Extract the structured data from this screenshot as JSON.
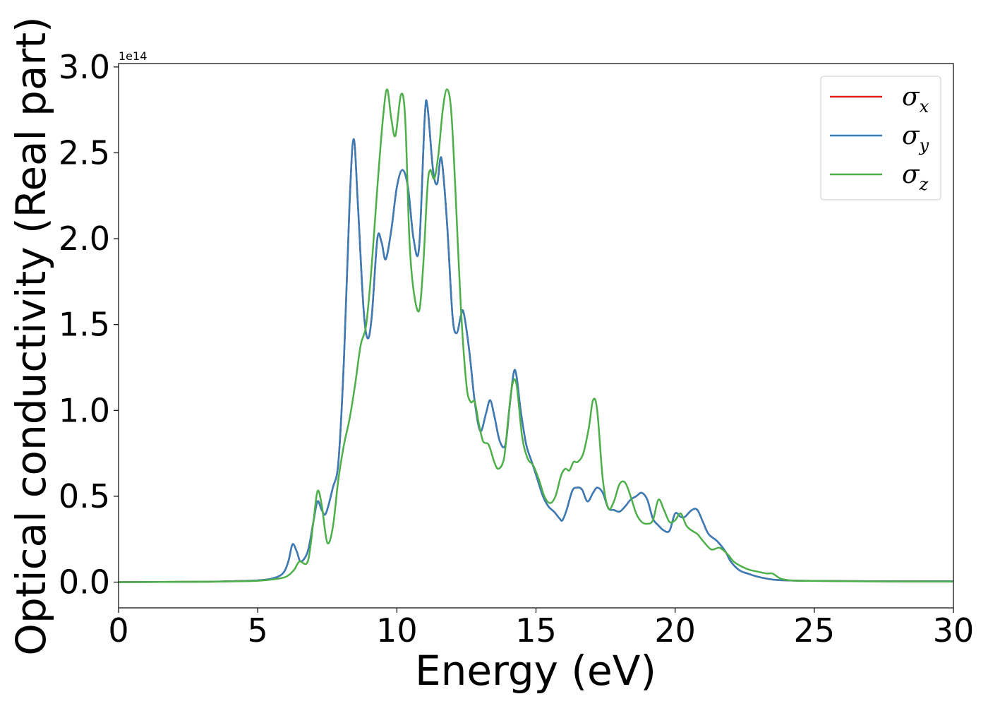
{
  "chart_data": {
    "type": "line",
    "xlabel": "Energy (eV)",
    "ylabel": "Optical conductivity (Real part)",
    "offset_text": "1e14",
    "xlim": [
      0,
      30
    ],
    "ylim": [
      -0.15,
      3.02
    ],
    "xticks": [
      0,
      5,
      10,
      15,
      20,
      25,
      30
    ],
    "xtick_labels": [
      "0",
      "5",
      "10",
      "15",
      "20",
      "25",
      "30"
    ],
    "yticks": [
      0.0,
      0.5,
      1.0,
      1.5,
      2.0,
      2.5,
      3.0
    ],
    "ytick_labels": [
      "0.0",
      "0.5",
      "1.0",
      "1.5",
      "2.0",
      "2.5",
      "3.0"
    ],
    "grid": false,
    "legend_position": "top-right",
    "series": [
      {
        "name": "σx",
        "symbol": "σ",
        "sub": "x",
        "color": "#e41a1c",
        "x": [
          0,
          3,
          4,
          5,
          5.5,
          5.9,
          6.1,
          6.25,
          6.4,
          6.55,
          6.8,
          7.0,
          7.15,
          7.3,
          7.45,
          7.7,
          7.9,
          8.1,
          8.3,
          8.45,
          8.6,
          8.8,
          8.95,
          9.1,
          9.3,
          9.45,
          9.6,
          9.8,
          10.0,
          10.2,
          10.4,
          10.6,
          10.8,
          11.0,
          11.1,
          11.3,
          11.45,
          11.6,
          11.8,
          12.0,
          12.15,
          12.3,
          12.4,
          12.6,
          12.8,
          13.0,
          13.2,
          13.35,
          13.5,
          13.7,
          13.9,
          14.05,
          14.2,
          14.3,
          14.45,
          14.65,
          14.85,
          15.05,
          15.25,
          15.45,
          15.65,
          15.85,
          15.95,
          16.1,
          16.3,
          16.45,
          16.65,
          16.85,
          17.05,
          17.2,
          17.4,
          17.6,
          17.8,
          18.0,
          18.2,
          18.4,
          18.6,
          18.8,
          19.0,
          19.2,
          19.4,
          19.6,
          19.8,
          20.0,
          20.2,
          20.35,
          20.6,
          20.8,
          21.0,
          21.2,
          21.5,
          21.8,
          22.0,
          22.3,
          22.6,
          23.0,
          23.5,
          24.0,
          25.0,
          27.0,
          30.0
        ],
        "y": [
          0.0,
          0.002,
          0.005,
          0.01,
          0.02,
          0.05,
          0.12,
          0.22,
          0.18,
          0.12,
          0.18,
          0.35,
          0.47,
          0.42,
          0.4,
          0.55,
          0.7,
          1.3,
          2.2,
          2.58,
          2.2,
          1.6,
          1.42,
          1.55,
          2.0,
          1.98,
          1.88,
          2.05,
          2.3,
          2.4,
          2.3,
          2.0,
          1.95,
          2.7,
          2.77,
          2.4,
          2.32,
          2.47,
          2.1,
          1.55,
          1.45,
          1.55,
          1.57,
          1.35,
          1.05,
          0.88,
          0.98,
          1.06,
          0.97,
          0.82,
          0.8,
          1.02,
          1.22,
          1.2,
          1.0,
          0.8,
          0.7,
          0.6,
          0.5,
          0.44,
          0.41,
          0.37,
          0.36,
          0.42,
          0.53,
          0.55,
          0.54,
          0.47,
          0.52,
          0.55,
          0.52,
          0.43,
          0.42,
          0.41,
          0.44,
          0.48,
          0.5,
          0.52,
          0.48,
          0.37,
          0.33,
          0.3,
          0.3,
          0.4,
          0.38,
          0.38,
          0.42,
          0.42,
          0.35,
          0.28,
          0.24,
          0.18,
          0.12,
          0.07,
          0.05,
          0.03,
          0.015,
          0.01,
          0.007,
          0.005,
          0.005
        ]
      },
      {
        "name": "σy",
        "symbol": "σ",
        "sub": "y",
        "color": "#377eb8",
        "x": [
          0,
          3,
          4,
          5,
          5.5,
          5.9,
          6.1,
          6.25,
          6.4,
          6.55,
          6.8,
          7.0,
          7.15,
          7.3,
          7.45,
          7.7,
          7.9,
          8.1,
          8.3,
          8.45,
          8.6,
          8.8,
          8.95,
          9.1,
          9.3,
          9.45,
          9.6,
          9.8,
          10.0,
          10.2,
          10.4,
          10.6,
          10.8,
          11.0,
          11.1,
          11.3,
          11.45,
          11.6,
          11.8,
          12.0,
          12.15,
          12.3,
          12.4,
          12.6,
          12.8,
          13.0,
          13.2,
          13.35,
          13.5,
          13.7,
          13.9,
          14.05,
          14.2,
          14.3,
          14.45,
          14.65,
          14.85,
          15.05,
          15.25,
          15.45,
          15.65,
          15.85,
          15.95,
          16.1,
          16.3,
          16.45,
          16.65,
          16.85,
          17.05,
          17.2,
          17.4,
          17.6,
          17.8,
          18.0,
          18.2,
          18.4,
          18.6,
          18.8,
          19.0,
          19.2,
          19.4,
          19.6,
          19.8,
          20.0,
          20.2,
          20.35,
          20.6,
          20.8,
          21.0,
          21.2,
          21.5,
          21.8,
          22.0,
          22.3,
          22.6,
          23.0,
          23.5,
          24.0,
          25.0,
          27.0,
          30.0
        ],
        "y": [
          0.0,
          0.002,
          0.005,
          0.01,
          0.02,
          0.05,
          0.12,
          0.22,
          0.18,
          0.12,
          0.18,
          0.35,
          0.47,
          0.42,
          0.4,
          0.55,
          0.7,
          1.3,
          2.2,
          2.58,
          2.2,
          1.6,
          1.42,
          1.55,
          2.0,
          1.98,
          1.88,
          2.05,
          2.3,
          2.4,
          2.3,
          2.0,
          1.95,
          2.7,
          2.77,
          2.4,
          2.32,
          2.47,
          2.1,
          1.55,
          1.45,
          1.55,
          1.57,
          1.35,
          1.05,
          0.88,
          0.98,
          1.06,
          0.97,
          0.82,
          0.8,
          1.02,
          1.22,
          1.2,
          1.0,
          0.8,
          0.7,
          0.6,
          0.5,
          0.44,
          0.41,
          0.37,
          0.36,
          0.42,
          0.53,
          0.55,
          0.54,
          0.47,
          0.52,
          0.55,
          0.52,
          0.43,
          0.42,
          0.41,
          0.44,
          0.48,
          0.5,
          0.52,
          0.48,
          0.37,
          0.33,
          0.3,
          0.3,
          0.4,
          0.38,
          0.38,
          0.42,
          0.42,
          0.35,
          0.28,
          0.24,
          0.18,
          0.12,
          0.07,
          0.05,
          0.03,
          0.015,
          0.01,
          0.007,
          0.005,
          0.005
        ]
      },
      {
        "name": "σz",
        "symbol": "σ",
        "sub": "z",
        "color": "#4daf4a",
        "x": [
          0,
          3,
          4,
          5,
          5.5,
          6.0,
          6.3,
          6.5,
          6.8,
          7.0,
          7.15,
          7.3,
          7.5,
          7.7,
          7.9,
          8.1,
          8.3,
          8.5,
          8.7,
          8.9,
          9.1,
          9.3,
          9.5,
          9.65,
          9.8,
          9.95,
          10.15,
          10.3,
          10.45,
          10.6,
          10.8,
          10.95,
          11.1,
          11.2,
          11.35,
          11.5,
          11.65,
          11.8,
          11.95,
          12.1,
          12.3,
          12.5,
          12.65,
          12.8,
          12.95,
          13.1,
          13.3,
          13.5,
          13.65,
          13.85,
          14.0,
          14.15,
          14.3,
          14.5,
          14.7,
          14.9,
          15.1,
          15.3,
          15.5,
          15.7,
          15.9,
          16.05,
          16.2,
          16.35,
          16.5,
          16.7,
          16.9,
          17.05,
          17.2,
          17.4,
          17.6,
          17.8,
          18.0,
          18.2,
          18.4,
          18.6,
          18.8,
          19.0,
          19.2,
          19.4,
          19.6,
          19.8,
          20.0,
          20.2,
          20.4,
          20.6,
          20.8,
          21.0,
          21.3,
          21.6,
          21.9,
          22.1,
          22.4,
          22.7,
          23.0,
          23.3,
          23.5,
          23.8,
          24.2,
          25.0,
          27.0,
          30.0
        ],
        "y": [
          0.0,
          0.002,
          0.004,
          0.008,
          0.015,
          0.03,
          0.07,
          0.12,
          0.12,
          0.35,
          0.53,
          0.45,
          0.23,
          0.32,
          0.6,
          0.8,
          0.95,
          1.15,
          1.38,
          1.5,
          1.85,
          2.3,
          2.7,
          2.87,
          2.7,
          2.6,
          2.84,
          2.7,
          2.0,
          1.7,
          1.58,
          1.85,
          2.3,
          2.4,
          2.35,
          2.5,
          2.75,
          2.87,
          2.75,
          2.3,
          1.6,
          1.15,
          1.05,
          1.05,
          0.92,
          0.82,
          0.8,
          0.7,
          0.66,
          0.72,
          0.95,
          1.15,
          1.15,
          0.85,
          0.72,
          0.68,
          0.6,
          0.5,
          0.46,
          0.5,
          0.62,
          0.66,
          0.65,
          0.7,
          0.7,
          0.75,
          0.9,
          1.06,
          1.0,
          0.6,
          0.43,
          0.47,
          0.57,
          0.58,
          0.5,
          0.4,
          0.35,
          0.34,
          0.36,
          0.48,
          0.42,
          0.35,
          0.36,
          0.4,
          0.33,
          0.3,
          0.28,
          0.24,
          0.19,
          0.2,
          0.16,
          0.12,
          0.09,
          0.07,
          0.06,
          0.05,
          0.05,
          0.02,
          0.01,
          0.007,
          0.004,
          0.003
        ]
      }
    ]
  }
}
